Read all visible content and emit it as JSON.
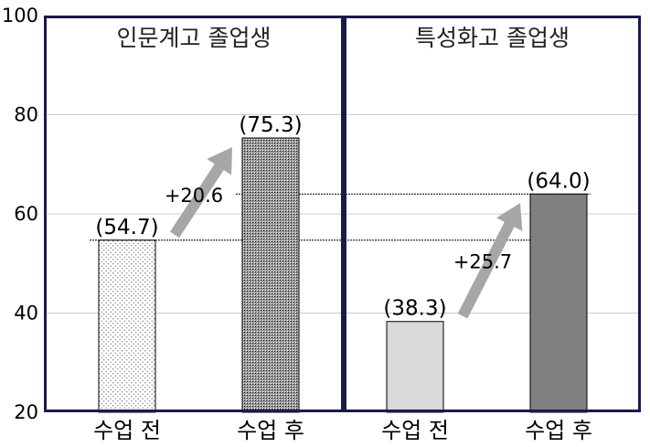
{
  "chart_data": {
    "type": "bar",
    "ylim": [
      20,
      100
    ],
    "yticks": [
      20,
      40,
      60,
      80,
      100
    ],
    "grid": true,
    "panels": [
      {
        "title": "인문계고 졸업생",
        "categories": [
          "수업 전",
          "수업 후"
        ],
        "values": [
          54.7,
          75.3
        ],
        "value_labels": [
          "(54.7)",
          "(75.3)"
        ],
        "change_label": "+20.6"
      },
      {
        "title": "특성화고 졸업생",
        "categories": [
          "수업 전",
          "수업 후"
        ],
        "values": [
          38.3,
          64.0
        ],
        "value_labels": [
          "(38.3)",
          "(64.0)"
        ],
        "change_label": "+25.7"
      }
    ],
    "colors": {
      "panel_border": "#1a1a4a",
      "arrow": "#a6a6a6",
      "bar_before_2": "#d9d9d9",
      "bar_after_2": "#808080",
      "grid": "#cccccc"
    }
  }
}
